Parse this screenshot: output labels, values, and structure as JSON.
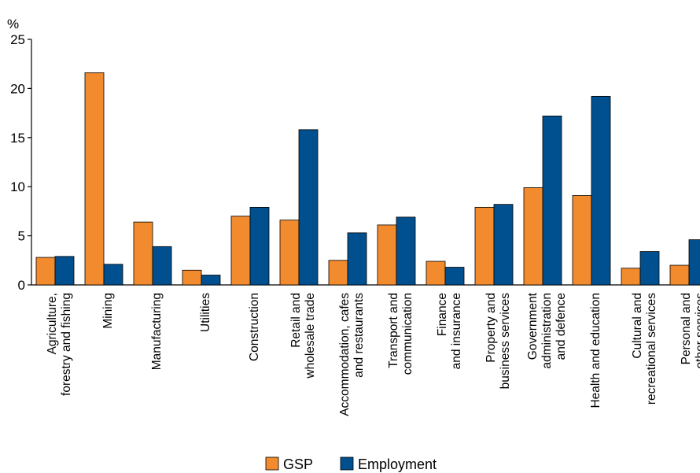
{
  "chart_data": {
    "type": "bar",
    "ylabel": "%",
    "ylim": [
      0,
      25
    ],
    "yticks": [
      0,
      5,
      10,
      15,
      20,
      25
    ],
    "grid": false,
    "legend_position": "bottom-center",
    "categories": [
      [
        "Agriculture,",
        "forestry and fishing"
      ],
      [
        "Mining"
      ],
      [
        "Manufacturing"
      ],
      [
        "Utilities"
      ],
      [
        "Construction"
      ],
      [
        "Retail and",
        "wholesale trade"
      ],
      [
        "Accommodation, cafes",
        "and restaurants"
      ],
      [
        "Transport and",
        "communication"
      ],
      [
        "Finance",
        "and insurance"
      ],
      [
        "Property and",
        "business services"
      ],
      [
        "Government",
        "administration",
        "and defence"
      ],
      [
        "Health and education"
      ],
      [
        "Cultural and",
        "recreational services"
      ],
      [
        "Personal and",
        "other services"
      ]
    ],
    "series": [
      {
        "name": "GSP",
        "color": "#F28A2E",
        "values": [
          2.8,
          21.6,
          6.4,
          1.5,
          7.0,
          6.6,
          2.5,
          6.1,
          2.4,
          7.9,
          9.9,
          9.1,
          1.7,
          2.0
        ]
      },
      {
        "name": "Employment",
        "color": "#00508F",
        "values": [
          2.9,
          2.1,
          3.9,
          1.0,
          7.9,
          15.8,
          5.3,
          6.9,
          1.8,
          8.2,
          17.2,
          19.2,
          3.4,
          4.6
        ]
      }
    ]
  }
}
